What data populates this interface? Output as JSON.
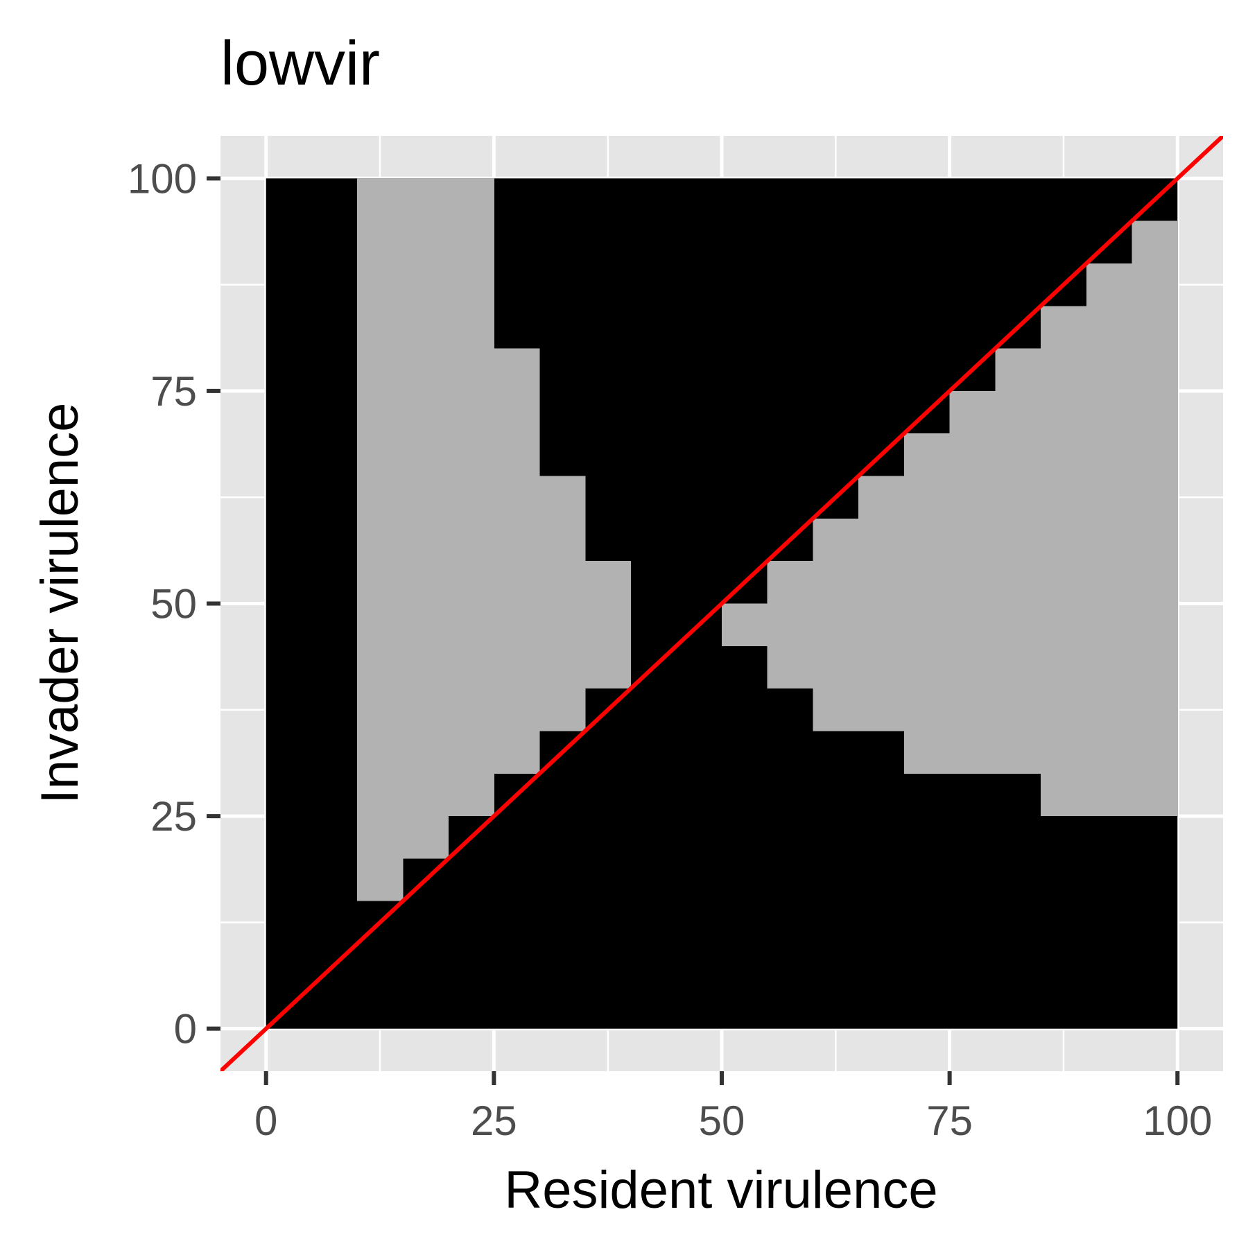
{
  "chart_data": {
    "type": "heatmap",
    "title": "lowvir",
    "xlabel": "Resident virulence",
    "ylabel": "Invader virulence",
    "xlim": [
      -5,
      105
    ],
    "ylim": [
      -5,
      105
    ],
    "x_ticks": [
      0,
      25,
      50,
      75,
      100
    ],
    "y_ticks": [
      0,
      25,
      50,
      75,
      100
    ],
    "x_tick_labels": [
      "0",
      "25",
      "50",
      "75",
      "100"
    ],
    "y_tick_labels": [
      "0",
      "25",
      "50",
      "75",
      "100"
    ],
    "grid": true,
    "legend": "none",
    "cell_size": 5,
    "x_extent": [
      0,
      100
    ],
    "y_extent": [
      0,
      100
    ],
    "background_color": "#000000",
    "gray_color": "#b2b2b2",
    "panel_color": "#e5e5e5",
    "gray_columns": [
      {
        "x": [
          10,
          15
        ],
        "y": [
          15,
          100
        ]
      },
      {
        "x": [
          15,
          20
        ],
        "y": [
          20,
          100
        ]
      },
      {
        "x": [
          20,
          25
        ],
        "y": [
          25,
          100
        ]
      },
      {
        "x": [
          25,
          30
        ],
        "y": [
          30,
          80
        ]
      },
      {
        "x": [
          30,
          35
        ],
        "y": [
          35,
          65
        ]
      },
      {
        "x": [
          35,
          40
        ],
        "y": [
          40,
          55
        ]
      },
      {
        "x": [
          50,
          55
        ],
        "y": [
          45,
          50
        ]
      },
      {
        "x": [
          55,
          60
        ],
        "y": [
          40,
          55
        ]
      },
      {
        "x": [
          60,
          65
        ],
        "y": [
          35,
          60
        ]
      },
      {
        "x": [
          65,
          70
        ],
        "y": [
          35,
          65
        ]
      },
      {
        "x": [
          70,
          75
        ],
        "y": [
          30,
          70
        ]
      },
      {
        "x": [
          75,
          80
        ],
        "y": [
          30,
          75
        ]
      },
      {
        "x": [
          80,
          85
        ],
        "y": [
          30,
          80
        ]
      },
      {
        "x": [
          85,
          90
        ],
        "y": [
          25,
          85
        ]
      },
      {
        "x": [
          90,
          95
        ],
        "y": [
          25,
          90
        ]
      },
      {
        "x": [
          95,
          100
        ],
        "y": [
          25,
          95
        ]
      }
    ],
    "reference_line": {
      "slope": 1,
      "intercept": 0,
      "color": "#ff0000"
    }
  }
}
